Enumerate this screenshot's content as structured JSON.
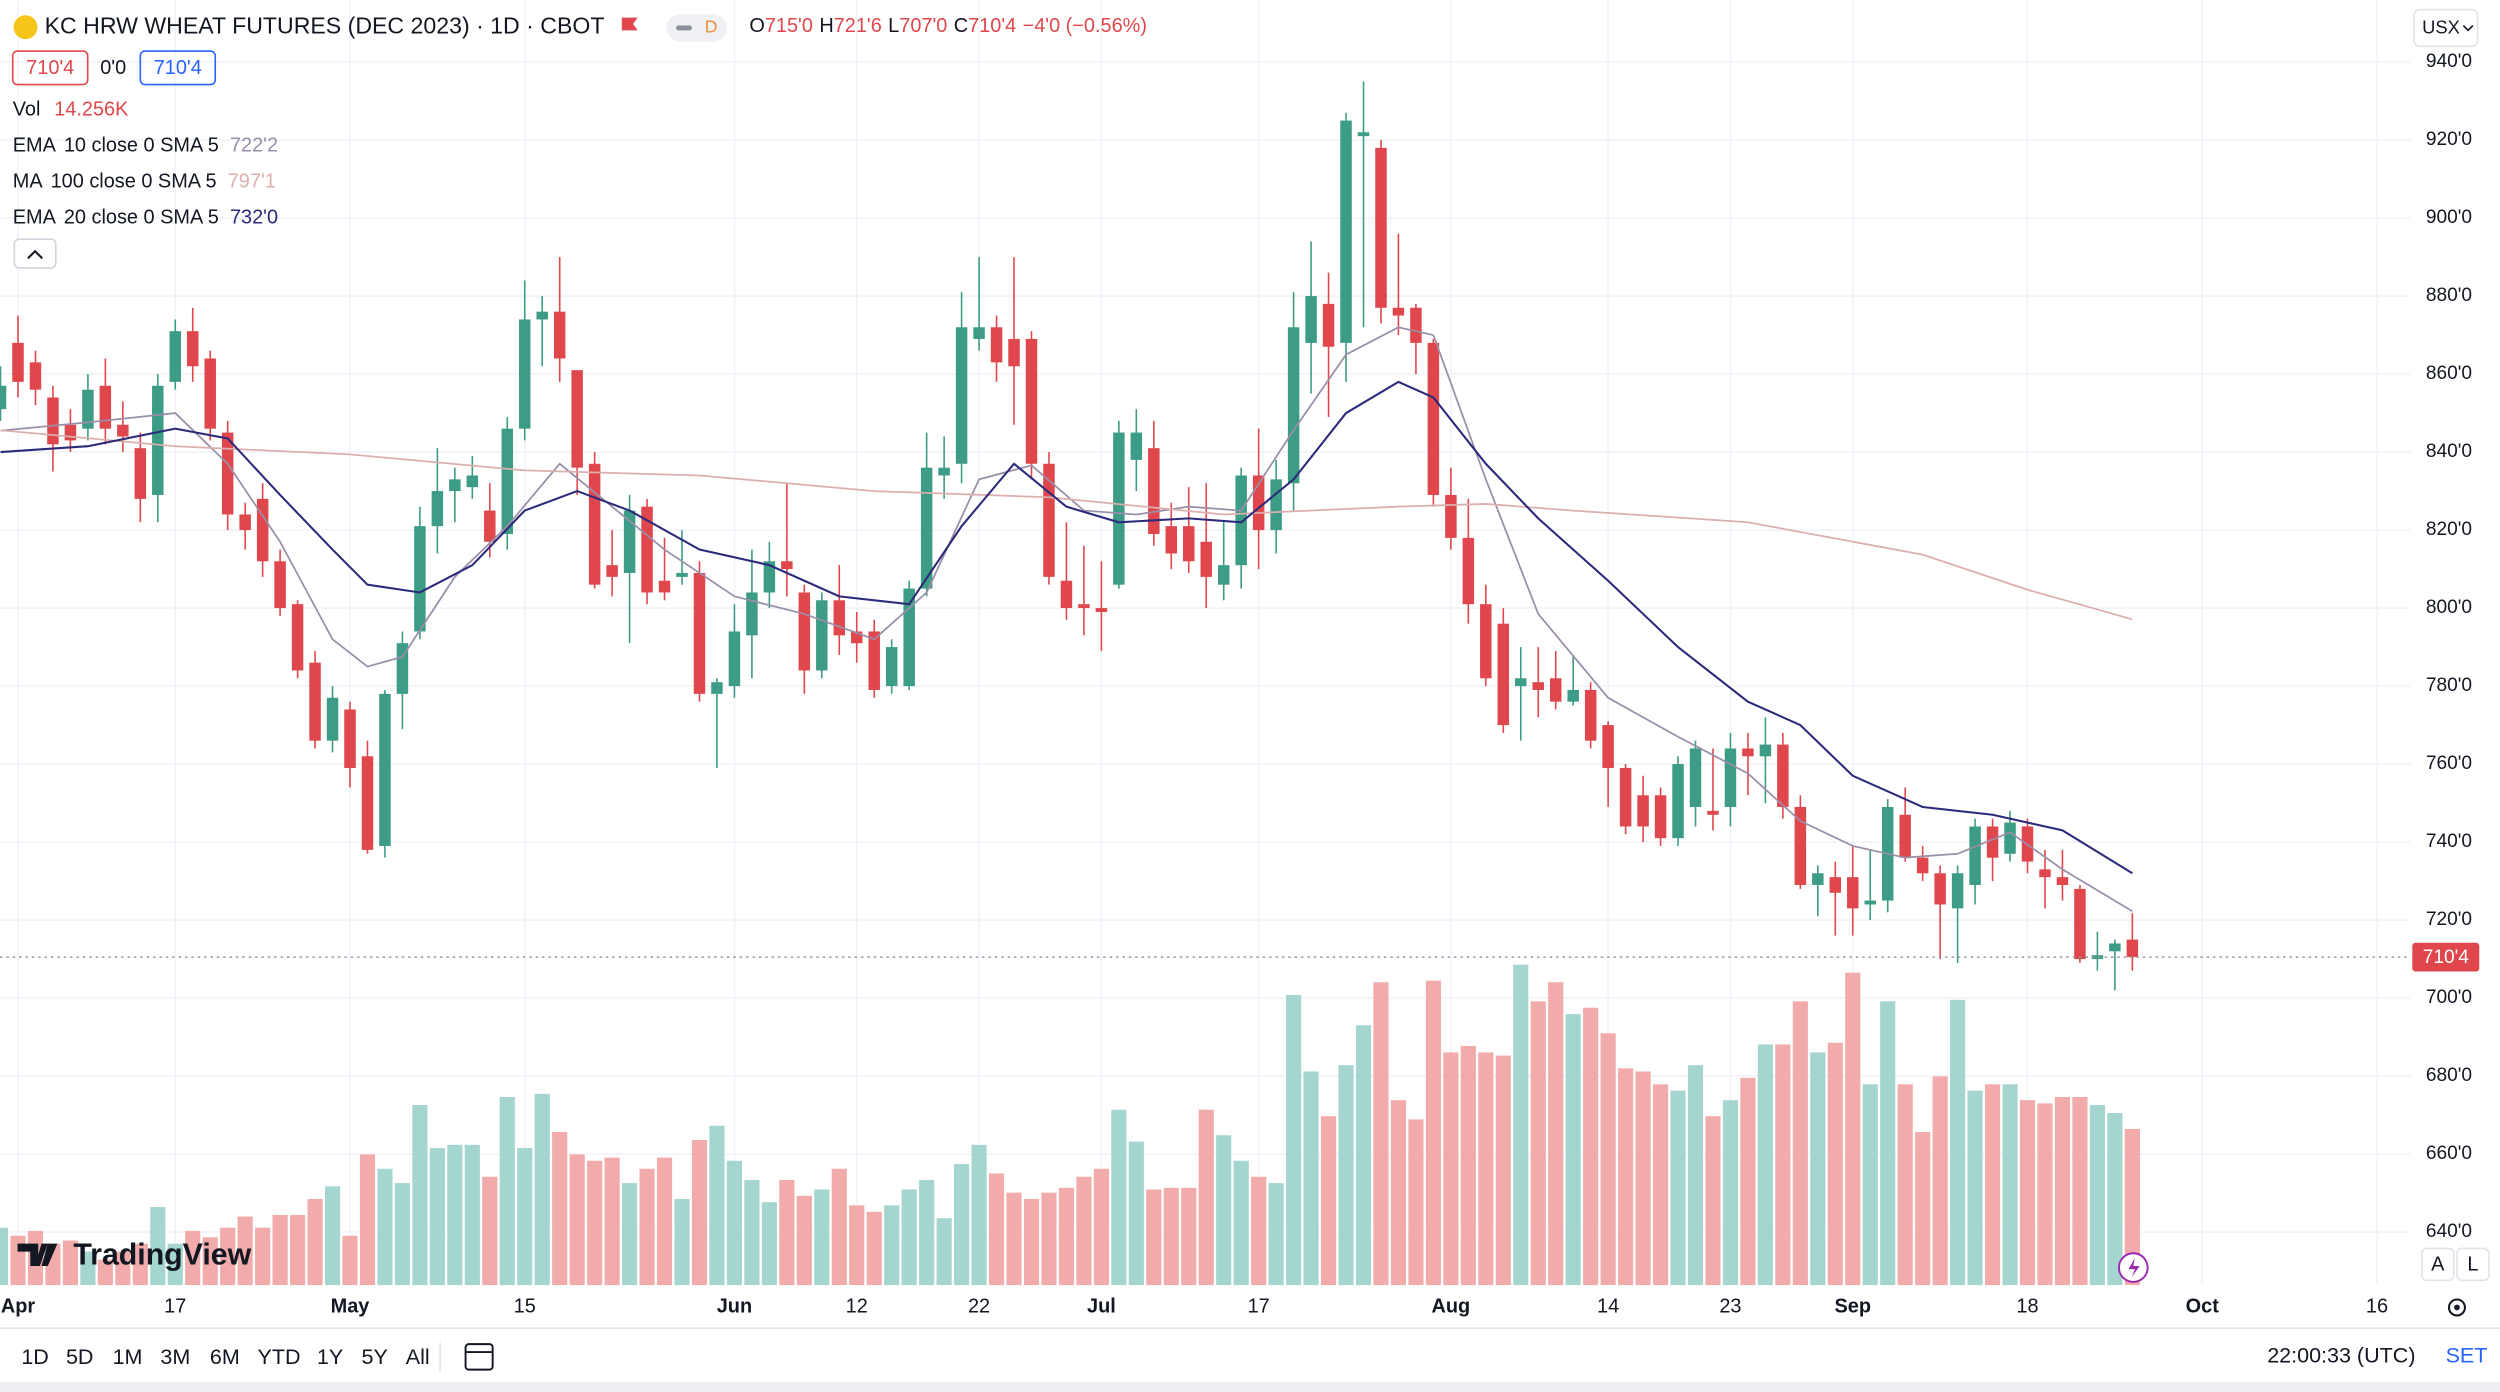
{
  "header": {
    "title": "KC HRW WHEAT FUTURES (DEC 2023) · 1D · CBOT",
    "interval_badge": "D",
    "ohlc": [
      {
        "key": "O",
        "value": "715'0"
      },
      {
        "key": "H",
        "value": "721'6"
      },
      {
        "key": "L",
        "value": "707'0"
      },
      {
        "key": "C",
        "value": "710'4"
      }
    ],
    "change": "−4'0 (−0.56%)",
    "price_boxes": [
      "710'4",
      "0'0",
      "710'4"
    ],
    "volume_label": "Vol",
    "volume_value": "14.256K",
    "currency": "USX"
  },
  "toolbar": {
    "ranges": [
      "1D",
      "5D",
      "1M",
      "3M",
      "6M",
      "YTD",
      "1Y",
      "5Y",
      "All"
    ],
    "time": "22:00:33 (UTC)",
    "session": "SET",
    "scale_buttons": [
      "A",
      "L"
    ],
    "logo": "TradingView"
  },
  "chart_data": {
    "type": "candlestick",
    "up_color": "#3c9c85",
    "down_color": "#e0474c",
    "volume_up_color": "#a4d6cf",
    "volume_down_color": "#f2abab",
    "grid": true,
    "xlim": [
      -0.03,
      137.93
    ],
    "ylim": [
      626.4,
      955.9
    ],
    "yticks": [
      {
        "value": 940,
        "label": "940'0"
      },
      {
        "value": 920,
        "label": "920'0"
      },
      {
        "value": 900,
        "label": "900'0"
      },
      {
        "value": 880,
        "label": "880'0"
      },
      {
        "value": 860,
        "label": "860'0"
      },
      {
        "value": 840,
        "label": "840'0"
      },
      {
        "value": 820,
        "label": "820'0"
      },
      {
        "value": 800,
        "label": "800'0"
      },
      {
        "value": 780,
        "label": "780'0"
      },
      {
        "value": 760,
        "label": "760'0"
      },
      {
        "value": 740,
        "label": "740'0"
      },
      {
        "value": 720,
        "label": "720'0"
      },
      {
        "value": 700,
        "label": "700'0"
      },
      {
        "value": 680,
        "label": "680'0"
      },
      {
        "value": 660,
        "label": "660'0"
      },
      {
        "value": 640,
        "label": "640'0"
      }
    ],
    "xticks": [
      {
        "value": 1,
        "label": "Apr"
      },
      {
        "value": 10,
        "label": "17"
      },
      {
        "value": 20,
        "label": "May"
      },
      {
        "value": 30,
        "label": "15"
      },
      {
        "value": 42,
        "label": "Jun"
      },
      {
        "value": 49,
        "label": "12"
      },
      {
        "value": 56,
        "label": "22"
      },
      {
        "value": 63,
        "label": "Jul"
      },
      {
        "value": 72,
        "label": "17"
      },
      {
        "value": 83,
        "label": "Aug"
      },
      {
        "value": 92,
        "label": "14"
      },
      {
        "value": 99,
        "label": "23"
      },
      {
        "value": 106,
        "label": "Sep"
      },
      {
        "value": 116,
        "label": "18"
      },
      {
        "value": 126,
        "label": "Oct"
      },
      {
        "value": 136,
        "label": "16"
      }
    ],
    "open": [
      851,
      868,
      863,
      854,
      847,
      846,
      857,
      847,
      841,
      829,
      858,
      871,
      864,
      845,
      824,
      828,
      812,
      801,
      786,
      766,
      774,
      762,
      739,
      778,
      794,
      821,
      830,
      831,
      825,
      819,
      846,
      874,
      876,
      861,
      837,
      811,
      809,
      826,
      807,
      808,
      809,
      778,
      780,
      793,
      804,
      812,
      804,
      784,
      802,
      794,
      794,
      780,
      780,
      805,
      834,
      837,
      869,
      872,
      869,
      869,
      837,
      807,
      801,
      800,
      806,
      838,
      841,
      821,
      821,
      817,
      806,
      811,
      834,
      820,
      832,
      868,
      878,
      868,
      921,
      918,
      877,
      877,
      868,
      829,
      818,
      801,
      796,
      780,
      781,
      782,
      776,
      779,
      770,
      759,
      752,
      752,
      741,
      749,
      748,
      749,
      764,
      762,
      765,
      749,
      729,
      731,
      731,
      724,
      725,
      747,
      736,
      732,
      723,
      729,
      744,
      737,
      744,
      733,
      731,
      728,
      710,
      712,
      715
    ],
    "high": [
      862,
      875,
      866,
      857,
      851,
      860,
      864,
      853,
      845,
      860,
      874,
      877,
      866,
      848,
      827,
      832,
      815,
      802,
      789,
      780,
      776,
      766,
      779,
      794,
      826,
      841,
      836,
      839,
      832,
      849,
      884,
      880,
      890,
      861,
      840,
      820,
      829,
      828,
      818,
      820,
      812,
      782,
      801,
      815,
      817,
      832,
      806,
      804,
      811,
      799,
      797,
      792,
      807,
      845,
      844,
      881,
      890,
      875,
      890,
      871,
      840,
      822,
      816,
      812,
      848,
      851,
      848,
      827,
      831,
      832,
      822,
      836,
      846,
      838,
      881,
      894,
      886,
      927,
      935,
      920,
      896,
      878,
      869,
      836,
      828,
      806,
      800,
      790,
      790,
      789,
      788,
      781,
      771,
      760,
      757,
      754,
      762,
      766,
      764,
      768,
      768,
      772,
      768,
      752,
      734,
      735,
      739,
      738,
      751,
      754,
      739,
      734,
      734,
      746,
      746,
      748,
      746,
      738,
      738,
      729,
      717,
      715,
      721.75
    ],
    "low": [
      848,
      854,
      852,
      835,
      840,
      843,
      842,
      840,
      822,
      822,
      856,
      858,
      843,
      820,
      815,
      808,
      798,
      782,
      764,
      763,
      754,
      737,
      736,
      769,
      792,
      814,
      822,
      828,
      813,
      815,
      843,
      862,
      858,
      829,
      805,
      803,
      791,
      801,
      802,
      806,
      776,
      759,
      777,
      782,
      800,
      803,
      778,
      782,
      788,
      786,
      777,
      778,
      779,
      803,
      828,
      832,
      866,
      858,
      847,
      833,
      806,
      797,
      793,
      789,
      805,
      830,
      816,
      810,
      809,
      800,
      802,
      805,
      810,
      814,
      825,
      855,
      849,
      858,
      872,
      873,
      870,
      860,
      826,
      815,
      796,
      780,
      768,
      766,
      772,
      774,
      775,
      764,
      749,
      742,
      740,
      739,
      739,
      744,
      743,
      744,
      752,
      750,
      746,
      728,
      721,
      716,
      716,
      720,
      722,
      735,
      730,
      710,
      709,
      724,
      730,
      735,
      732,
      723,
      725,
      709,
      707,
      702,
      707
    ],
    "close": [
      857,
      858,
      856,
      842,
      843,
      856,
      846,
      844,
      828,
      857,
      871,
      862,
      846,
      824,
      820,
      812,
      800,
      784,
      766,
      777,
      759,
      738,
      778,
      791,
      821,
      830,
      833,
      834,
      817,
      846,
      874,
      876,
      864,
      836,
      806,
      808,
      825,
      804,
      804,
      809,
      778,
      781,
      794,
      804,
      812,
      810,
      784,
      802,
      793,
      791,
      779,
      790,
      805,
      836,
      836,
      872,
      872,
      863,
      862,
      837,
      808,
      800,
      800,
      799,
      845,
      845,
      819,
      814,
      812,
      808,
      811,
      834,
      820,
      833,
      872,
      880,
      867,
      925,
      922,
      877,
      875,
      868,
      829,
      818,
      801,
      782,
      770,
      782,
      779,
      776,
      779,
      766,
      759,
      744,
      744,
      741,
      760,
      764,
      747,
      764,
      762,
      765,
      749,
      729,
      732,
      727,
      723,
      725,
      749,
      736,
      732,
      724,
      732,
      744,
      736,
      745,
      735,
      731,
      729,
      710,
      711,
      714,
      710.5
    ],
    "volume": [
      5240,
      4510,
      4950,
      3780,
      4070,
      3060,
      2330,
      3060,
      3780,
      7130,
      3780,
      4950,
      4370,
      5240,
      6260,
      5240,
      6400,
      6400,
      7860,
      9020,
      4510,
      11930,
      10620,
      9310,
      16440,
      12510,
      12800,
      12800,
      9890,
      17170,
      12510,
      17460,
      13970,
      11930,
      11350,
      11640,
      9310,
      10620,
      11640,
      7860,
      13240,
      14550,
      11350,
      9600,
      7570,
      9600,
      8150,
      8730,
      10620,
      7280,
      6690,
      7280,
      8730,
      9600,
      6110,
      11060,
      12800,
      10190,
      8440,
      7860,
      8440,
      8880,
      9890,
      10620,
      16010,
      13100,
      8730,
      8880,
      8880,
      16010,
      13680,
      11350,
      9890,
      9310,
      26480,
      19500,
      15420,
      20080,
      23720,
      27650,
      16880,
      15130,
      27790,
      21240,
      21830,
      21240,
      20950,
      29250,
      25900,
      27650,
      24740,
      25320,
      22990,
      19790,
      19500,
      18330,
      17750,
      20080,
      15420,
      16880,
      18920,
      21970,
      21970,
      25900,
      21240,
      22120,
      28520,
      18330,
      25900,
      18330,
      13970,
      19060,
      26040,
      17750,
      18330,
      18330,
      16880,
      16590,
      17170,
      17170,
      16440,
      15710,
      14256
    ],
    "last_price_label": "710'4",
    "indicators": [
      {
        "name": "EMA",
        "params": "10 close 0 SMA 5",
        "value_label": "722'2",
        "color": "#9b8ea8",
        "x": [
          0,
          5,
          10,
          13,
          16,
          19,
          21,
          23,
          26,
          29,
          32,
          35,
          38,
          42,
          46,
          50,
          53,
          56,
          59,
          62,
          65,
          68,
          71,
          74,
          77,
          80,
          82,
          85,
          88,
          92,
          96,
          100,
          103,
          106,
          109,
          112,
          115,
          118,
          122
        ],
        "values": [
          845.5,
          847.6,
          850,
          837,
          817,
          792,
          785,
          787.5,
          808,
          821,
          837,
          826,
          815,
          803,
          798.5,
          792,
          804,
          833,
          836.6,
          825,
          824,
          826,
          825,
          845.6,
          865,
          872,
          870,
          833,
          798.5,
          777,
          767,
          757.6,
          745.4,
          739,
          736,
          737,
          742.5,
          733,
          722.25
        ]
      },
      {
        "name": "MA",
        "params": "100 close 0 SMA 5",
        "value_label": "797'1",
        "color": "#dcaeae",
        "x": [
          0,
          10,
          20,
          30,
          40,
          50,
          60,
          70,
          80,
          85,
          90,
          100,
          110,
          116,
          122
        ],
        "values": [
          845.6,
          841.5,
          839.4,
          835.3,
          834,
          830,
          828.4,
          824,
          826,
          826.7,
          825,
          822,
          813.7,
          804.7,
          797.125
        ]
      },
      {
        "name": "EMA",
        "params": "20 close 0 SMA 5",
        "value_label": "732'0",
        "color": "#2c2a7a",
        "x": [
          0,
          5,
          10,
          13,
          16,
          19,
          21,
          24,
          27,
          30,
          33,
          36,
          40,
          44,
          48,
          52,
          55,
          58,
          61,
          64,
          68,
          71,
          74,
          77,
          80,
          82,
          85,
          88,
          92,
          96,
          100,
          103,
          106,
          110,
          114,
          118,
          122
        ],
        "values": [
          840,
          841.5,
          846,
          843.5,
          829,
          815,
          806,
          804,
          811,
          825,
          830,
          825,
          815,
          811,
          803,
          801,
          821,
          837,
          826,
          822,
          823,
          822,
          833,
          850,
          858,
          854,
          837,
          823,
          807,
          790,
          776,
          770,
          757,
          749,
          747,
          743,
          732
        ]
      }
    ]
  }
}
